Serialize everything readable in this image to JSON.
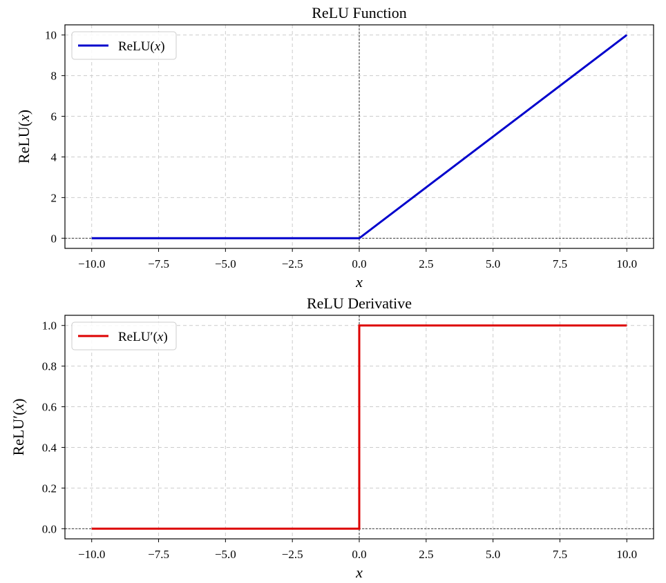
{
  "chart_data": [
    {
      "type": "line",
      "title": "ReLU Function",
      "xlabel": "x",
      "ylabel": "ReLU(x)",
      "xlim": [
        -11,
        11
      ],
      "ylim": [
        -0.5,
        10.5
      ],
      "xticks": [
        -10.0,
        -7.5,
        -5.0,
        -2.5,
        0.0,
        2.5,
        5.0,
        7.5,
        10.0
      ],
      "xtick_labels": [
        "−10.0",
        "−7.5",
        "−5.0",
        "−2.5",
        "0.0",
        "2.5",
        "5.0",
        "7.5",
        "10.0"
      ],
      "yticks": [
        0,
        2,
        4,
        6,
        8,
        10
      ],
      "ytick_labels": [
        "0",
        "2",
        "4",
        "6",
        "8",
        "10"
      ],
      "grid": true,
      "legend_position": "top-left",
      "series": [
        {
          "name": "ReLU(x)",
          "color": "#0000cc",
          "x": [
            -10,
            0,
            10
          ],
          "y": [
            0,
            0,
            10
          ]
        }
      ],
      "reference_lines": {
        "y0": true,
        "x0": true
      }
    },
    {
      "type": "line",
      "title": "ReLU Derivative",
      "xlabel": "x",
      "ylabel": "ReLU′(x)",
      "xlim": [
        -11,
        11
      ],
      "ylim": [
        -0.05,
        1.05
      ],
      "xticks": [
        -10.0,
        -7.5,
        -5.0,
        -2.5,
        0.0,
        2.5,
        5.0,
        7.5,
        10.0
      ],
      "xtick_labels": [
        "−10.0",
        "−7.5",
        "−5.0",
        "−2.5",
        "0.0",
        "2.5",
        "5.0",
        "7.5",
        "10.0"
      ],
      "yticks": [
        0.0,
        0.2,
        0.4,
        0.6,
        0.8,
        1.0
      ],
      "ytick_labels": [
        "0.0",
        "0.2",
        "0.4",
        "0.6",
        "0.8",
        "1.0"
      ],
      "grid": true,
      "legend_position": "top-left",
      "series": [
        {
          "name": "ReLU′(x)",
          "color": "#dd0000",
          "x": [
            -10,
            0,
            0,
            10
          ],
          "y": [
            0,
            0,
            1,
            1
          ]
        }
      ],
      "reference_lines": {
        "y0": true,
        "x0": true
      }
    }
  ]
}
